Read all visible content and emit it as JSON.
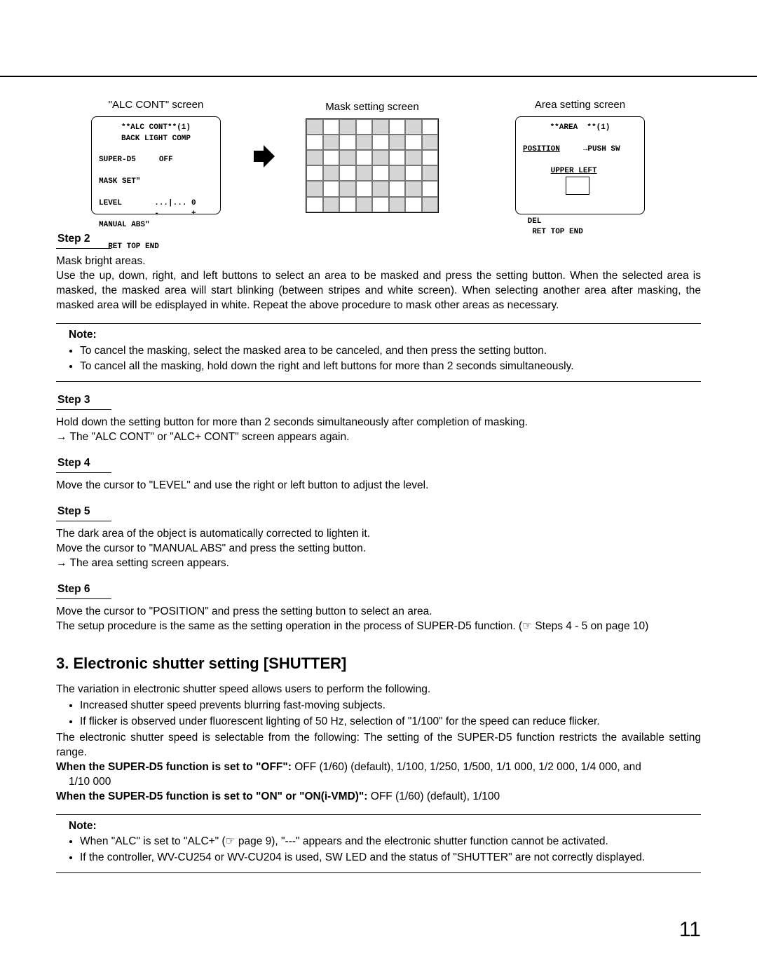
{
  "screens": {
    "alc": {
      "label": "\"ALC CONT\" screen",
      "title": "**ALC CONT**(1)",
      "subtitle": "BACK LIGHT COMP",
      "row1_key": "SUPER-D5",
      "row1_val": "OFF",
      "row2_key": "MASK SET\"",
      "row3_key": "LEVEL",
      "row3_val": "...|... 0",
      "row3_sub": "-       +",
      "row4_key": "MANUAL ABS\"",
      "footer": "RET TOP END"
    },
    "mask": {
      "label": "Mask setting screen",
      "cols": 8,
      "rows": 6,
      "shaded_cells": [
        0,
        2,
        4,
        6,
        9,
        11,
        13,
        15,
        16,
        18,
        20,
        22,
        25,
        27,
        29,
        31,
        32,
        34,
        36,
        38,
        41,
        43,
        45,
        47
      ]
    },
    "area": {
      "label": "Area setting screen",
      "title": "**AREA  **(1)",
      "row1_key": "POSITION",
      "row1_val": "→PUSH SW",
      "row2": "UPPER LEFT",
      "del": "DEL",
      "footer": "RET TOP END"
    }
  },
  "steps": {
    "s2": {
      "label": "Step 2",
      "line1": "Mask bright areas.",
      "line2": "Use the up, down, right, and left buttons to select an area to be masked and press the setting button. When the selected area is masked, the masked area will start blinking (between stripes and white screen). When selecting another area after masking, the masked area will be edisplayed in white. Repeat the above procedure to mask other areas as necessary."
    },
    "note1": {
      "label": "Note:",
      "b1": "To cancel the masking, select the masked area to be canceled, and then press the setting button.",
      "b2": "To cancel all the masking, hold down the right and left buttons for more than 2 seconds simultaneously."
    },
    "s3": {
      "label": "Step 3",
      "line1": "Hold down the setting button for more than 2 seconds simultaneously after completion of masking.",
      "line2": "→  The \"ALC CONT\" or \"ALC+ CONT\" screen appears again."
    },
    "s4": {
      "label": "Step 4",
      "line1": "Move the cursor to \"LEVEL\" and use the right or left button to adjust the level."
    },
    "s5": {
      "label": "Step 5",
      "line1": "The dark area of the object is automatically corrected to lighten it.",
      "line2": "Move the cursor to \"MANUAL ABS\" and press the setting button.",
      "line3": "→  The area setting screen appears."
    },
    "s6": {
      "label": "Step 6",
      "line1": "Move the cursor to \"POSITION\" and press the setting button to select an area.",
      "line2": "The setup procedure is the same as the setting operation in the process of SUPER-D5 function. (☞ Steps 4 - 5 on page 10)"
    }
  },
  "section3": {
    "title": "3. Electronic shutter setting [SHUTTER]",
    "intro": "The variation in electronic shutter speed allows users to perform the following.",
    "b1": "Increased shutter speed prevents blurring fast-moving subjects.",
    "b2": "If flicker is observed under fluorescent lighting of 50 Hz, selection of \"1/100\" for the speed can reduce flicker.",
    "after": "The electronic shutter speed is selectable from the following: The setting of the SUPER-D5 function restricts the available setting range.",
    "off_label": "When the SUPER-D5 function is set to \"OFF\":",
    "off_vals": " OFF (1/60) (default), 1/100, 1/250, 1/500, 1/1 000, 1/2 000, 1/4 000, and",
    "off_vals2": "1/10 000",
    "on_label": "When the SUPER-D5 function is set to \"ON\" or \"ON(i-VMD)\":",
    "on_vals": " OFF (1/60) (default), 1/100",
    "note_label": "Note:",
    "nb1": "When \"ALC\" is set to \"ALC+\" (☞ page 9), \"---\" appears and the electronic shutter function cannot be activated.",
    "nb2": "If the controller, WV-CU254 or WV-CU204 is used, SW LED and the status of \"SHUTTER\" are not correctly displayed."
  },
  "page_number": "11"
}
